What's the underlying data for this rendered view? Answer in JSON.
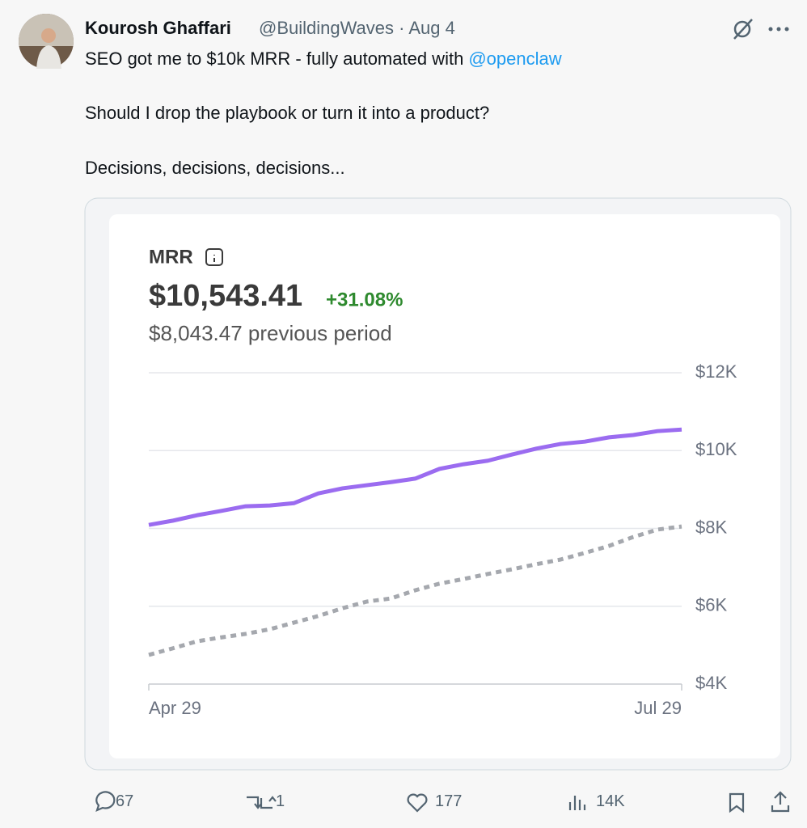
{
  "tweet": {
    "author": "Kourosh Ghaffari",
    "meta": "@BuildingWaves · Aug 4",
    "lead": "SEO got me to $10k MRR - fully automated with",
    "mention": "@openclaw",
    "paragraphs": [
      "Should I drop the playbook or turn it into a product?",
      "Decisions, decisions, decisions..."
    ]
  },
  "actions": {
    "replies": "67",
    "reposts": "1",
    "likes": "177",
    "views": "14K"
  },
  "chart_data": {
    "type": "line",
    "title": "MRR",
    "headline": "$10,543.41",
    "change": "+31.08%",
    "subtitle": "$8,043.47 previous period",
    "categories": [
      "Apr 29",
      null,
      null,
      null,
      null,
      null,
      null,
      null,
      null,
      null,
      null,
      null,
      null,
      null,
      null,
      null,
      null,
      null,
      null,
      null,
      null,
      null,
      "Jul 29"
    ],
    "series": [
      {
        "color": "#9b6cf0",
        "style": "solid",
        "values": [
          8090,
          8200,
          8340,
          8450,
          8570,
          8590,
          8650,
          8900,
          9030,
          9110,
          9190,
          9280,
          9530,
          9650,
          9740,
          9900,
          10050,
          10170,
          10230,
          10340,
          10400,
          10500,
          10540
        ]
      },
      {
        "color": "#a5a8ae",
        "style": "dashed",
        "values": [
          4750,
          4920,
          5100,
          5200,
          5290,
          5410,
          5580,
          5750,
          5950,
          6120,
          6200,
          6410,
          6580,
          6700,
          6830,
          6950,
          7080,
          7200,
          7370,
          7550,
          7780,
          7970,
          8050
        ]
      }
    ],
    "ylim": [
      4000,
      12000
    ],
    "yticks": [
      {
        "value": 4000,
        "label": "$4K"
      },
      {
        "value": 6000,
        "label": "$6K"
      },
      {
        "value": 8000,
        "label": "$8K"
      },
      {
        "value": 10000,
        "label": "$10K"
      },
      {
        "value": 12000,
        "label": "$12K"
      }
    ],
    "grid": true
  }
}
